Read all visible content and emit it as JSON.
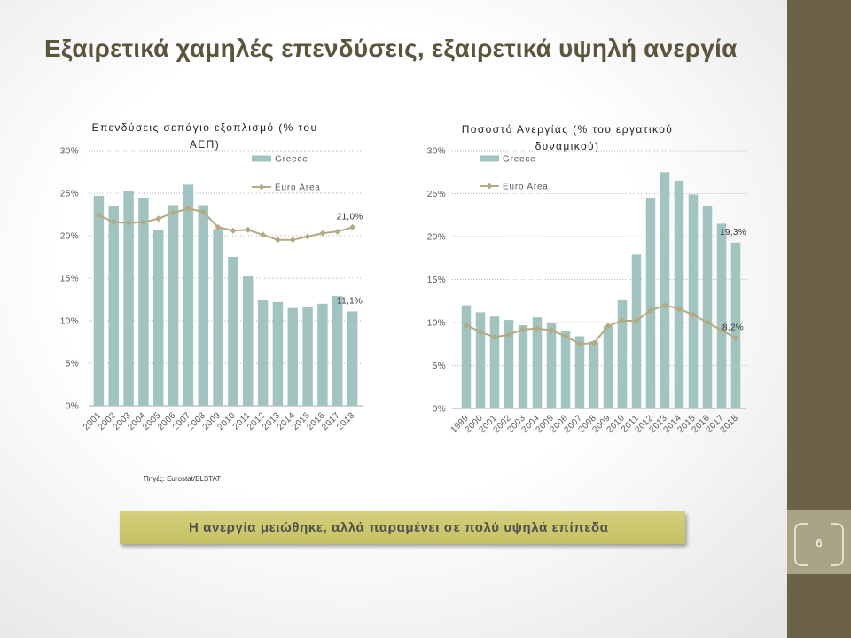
{
  "slide": {
    "title": "Εξαιρετικά χαμηλές επενδύσεις, εξαιρετικά υψηλή ανεργία",
    "source": "Πηγές: Eurostat/ELSTAT",
    "callout": "Η ανεργία μειώθηκε, αλλά παραμένει σε πολύ υψηλά επίπεδα",
    "page_number": "6"
  },
  "colors": {
    "title": "#5b553b",
    "sidebar": "#6b6247",
    "sidebar_box": "#aaa486",
    "callout": "#cdc96f",
    "greece_bars": "#a1c4c1",
    "euro_area_line": "#b3ab7f"
  },
  "chart_data": [
    {
      "type": "bar",
      "title": "Επενδύσεις σεπάγιο εξοπλισμό (% του ΑΕΠ)",
      "categories": [
        "2001",
        "2002",
        "2003",
        "2004",
        "2005",
        "2006",
        "2007",
        "2008",
        "2009",
        "2010",
        "2011",
        "2012",
        "2013",
        "2014",
        "2015",
        "2016",
        "2017",
        "2018"
      ],
      "series": [
        {
          "name": "Greece",
          "type": "bar",
          "color": "#a1c4c1",
          "values": [
            24.7,
            23.5,
            25.3,
            24.4,
            20.7,
            23.6,
            26.0,
            23.6,
            20.8,
            17.5,
            15.2,
            12.5,
            12.2,
            11.5,
            11.6,
            12.0,
            12.9,
            11.1
          ]
        },
        {
          "name": "Euro Area",
          "type": "line",
          "color": "#b3ab7f",
          "values": [
            22.4,
            21.6,
            21.5,
            21.6,
            22.0,
            22.7,
            23.2,
            22.8,
            21.0,
            20.6,
            20.7,
            20.1,
            19.5,
            19.5,
            19.9,
            20.3,
            20.5,
            21.0
          ]
        }
      ],
      "yticks": [
        0,
        5,
        10,
        15,
        20,
        25,
        30
      ],
      "ytick_labels": [
        "0%",
        "5%",
        "10%",
        "15%",
        "20%",
        "25%",
        "30%"
      ],
      "ylim": [
        0,
        30
      ],
      "grid": true,
      "legend": "top-right",
      "data_labels": [
        {
          "series": "Euro Area",
          "category": "2018",
          "text": "21,0%"
        },
        {
          "series": "Greece",
          "category": "2018",
          "text": "11,1%"
        }
      ]
    },
    {
      "type": "bar",
      "title": "Ποσοστό Ανεργίας (% του εργατικού δυναμικού)",
      "categories": [
        "1999",
        "2000",
        "2001",
        "2002",
        "2003",
        "2004",
        "2005",
        "2006",
        "2007",
        "2008",
        "2009",
        "2010",
        "2011",
        "2012",
        "2013",
        "2014",
        "2015",
        "2016",
        "2017",
        "2018"
      ],
      "series": [
        {
          "name": "Greece",
          "type": "bar",
          "color": "#a1c4c1",
          "values": [
            12.0,
            11.2,
            10.7,
            10.3,
            9.7,
            10.6,
            10.0,
            9.0,
            8.4,
            7.8,
            9.6,
            12.7,
            17.9,
            24.5,
            27.5,
            26.5,
            24.9,
            23.6,
            21.5,
            19.3
          ]
        },
        {
          "name": "Euro Area",
          "type": "line",
          "color": "#b3ab7f",
          "values": [
            9.7,
            8.9,
            8.3,
            8.6,
            9.2,
            9.3,
            9.1,
            8.4,
            7.5,
            7.6,
            9.6,
            10.2,
            10.2,
            11.4,
            12.0,
            11.6,
            10.9,
            10.0,
            9.1,
            8.2
          ]
        }
      ],
      "yticks": [
        0,
        5,
        10,
        15,
        20,
        25,
        30
      ],
      "ytick_labels": [
        "0%",
        "5%",
        "10%",
        "15%",
        "20%",
        "25%",
        "30%"
      ],
      "ylim": [
        0,
        30
      ],
      "grid": true,
      "legend": "top-left",
      "data_labels": [
        {
          "series": "Greece",
          "category": "2018",
          "text": "19,3%"
        },
        {
          "series": "Euro Area",
          "category": "2018",
          "text": "8,2%"
        }
      ]
    }
  ]
}
